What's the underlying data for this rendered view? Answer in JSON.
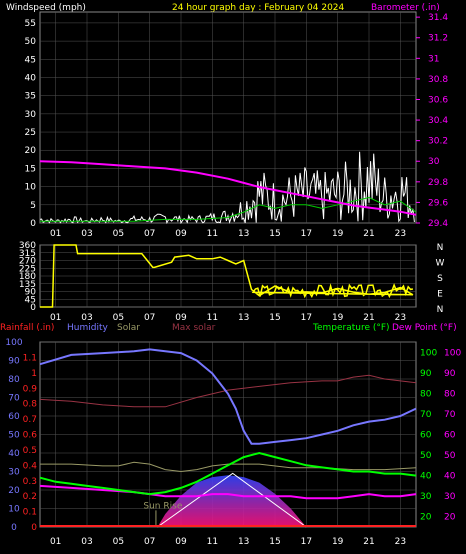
{
  "colors": {
    "background": "#000000",
    "grid": "#555555",
    "windspeed": "#ffffff",
    "wind_avg": "#00cc00",
    "barometer": "#ff00ff",
    "wind_dir": "#ffff00",
    "humidity": "#7777ff",
    "temperature": "#00ff00",
    "dewpoint": "#ff00ff",
    "max_solar": "#993344",
    "solar": "#999966",
    "rainfall": "#ff2222",
    "header_wind": "#ffffff",
    "header_title": "#ffff00",
    "header_baro": "#ff00ff"
  },
  "chart_data": [
    {
      "type": "line",
      "title": "24 hour graph day : February 04 2024",
      "ylabel": "Windspeed (mph)",
      "y2label": "Barometer (.in)",
      "ylim": [
        0,
        58
      ],
      "y2lim": [
        29.4,
        31.45
      ],
      "yticks": [
        "0",
        "5",
        "10",
        "15",
        "20",
        "25",
        "30",
        "35",
        "40",
        "45",
        "50",
        "55"
      ],
      "y2ticks": [
        "29.4",
        "29.6",
        "29.8",
        "30",
        "30.2",
        "30.4",
        "30.6",
        "30.8",
        "31",
        "31.2",
        "31.4"
      ],
      "xticks": [
        "01",
        "03",
        "05",
        "07",
        "09",
        "11",
        "13",
        "15",
        "17",
        "19",
        "21",
        "23"
      ],
      "grid": true,
      "series": [
        {
          "name": "Barometer",
          "x": [
            0,
            2,
            4,
            6,
            8,
            10,
            12,
            13,
            14,
            15,
            16,
            17,
            18,
            19,
            20,
            21,
            22,
            23,
            24
          ],
          "values": [
            30.0,
            29.99,
            29.97,
            29.95,
            29.93,
            29.89,
            29.83,
            29.79,
            29.75,
            29.72,
            29.69,
            29.66,
            29.63,
            29.6,
            29.57,
            29.55,
            29.53,
            29.51,
            29.48
          ]
        },
        {
          "name": "Windspeed",
          "x": [
            0,
            1,
            2,
            3,
            4,
            5,
            6,
            7,
            8,
            9,
            10,
            11,
            12,
            13,
            14,
            15,
            16,
            17,
            18,
            19,
            20,
            21,
            22,
            23,
            24
          ],
          "values": [
            2,
            1,
            2,
            1,
            2,
            1,
            2,
            2,
            3,
            2,
            2,
            3,
            4,
            8,
            16,
            12,
            14,
            16,
            14,
            16,
            18,
            24,
            14,
            18,
            8
          ]
        },
        {
          "name": "Wind Avg",
          "x": [
            0,
            2,
            4,
            6,
            8,
            10,
            12,
            13,
            14,
            15,
            16,
            17,
            18,
            19,
            20,
            21,
            22,
            23,
            24
          ],
          "values": [
            0.5,
            0.5,
            0.5,
            0.5,
            1,
            1,
            1.5,
            3,
            5,
            4,
            5,
            5,
            4,
            5,
            6,
            7,
            5,
            6,
            3
          ]
        }
      ]
    },
    {
      "type": "line",
      "ylabels": [
        "360",
        "315",
        "270",
        "225",
        "180",
        "135",
        "90",
        "45",
        "0"
      ],
      "y2labels": [
        "N",
        "W",
        "S",
        "E",
        "N"
      ],
      "ylim": [
        0,
        360
      ],
      "xticks": [
        "01",
        "03",
        "05",
        "07",
        "09",
        "11",
        "13",
        "15",
        "17",
        "19",
        "21",
        "23"
      ],
      "series": [
        {
          "name": "Wind Direction",
          "x": [
            0,
            0.8,
            0.9,
            2.3,
            2.4,
            6.5,
            7.2,
            7.3,
            8.4,
            8.6,
            9.5,
            10,
            11,
            11.5,
            12,
            12.5,
            13,
            13.5,
            14,
            15,
            16,
            17,
            18,
            19,
            20,
            21,
            22,
            23,
            23.8
          ],
          "values": [
            0,
            0,
            360,
            360,
            310,
            310,
            230,
            230,
            260,
            290,
            300,
            280,
            280,
            290,
            270,
            250,
            270,
            110,
            80,
            100,
            90,
            80,
            95,
            85,
            90,
            80,
            85,
            90,
            60
          ]
        }
      ]
    },
    {
      "type": "line",
      "labels_left": [
        "Rainfall (.in)",
        "Humidity",
        "Solar",
        "Max solar"
      ],
      "labels_right": [
        "Temperature (°F)",
        "Dew Point (°F)"
      ],
      "hum_ticks": [
        "100",
        "90",
        "80",
        "70",
        "60",
        "50",
        "40",
        "30",
        "20",
        "10",
        "0"
      ],
      "rain_ticks": [
        "1.1",
        "1",
        "0.9",
        "0.8",
        "0.7",
        "0.6",
        "0.5",
        "0.4",
        "0.3",
        "0.2",
        "0.1",
        "0"
      ],
      "temp_ticks": [
        "100",
        "90",
        "80",
        "70",
        "60",
        "50",
        "40",
        "30",
        "20"
      ],
      "dew_ticks": [
        "100",
        "90",
        "80",
        "70",
        "60",
        "50",
        "40",
        "30",
        "20"
      ],
      "xticks": [
        "01",
        "03",
        "05",
        "07",
        "09",
        "11",
        "13",
        "15",
        "17",
        "19",
        "21",
        "23"
      ],
      "annotation": "Sun Rise",
      "ylim_humidity": [
        0,
        100
      ],
      "ylim_temperature": [
        15,
        105
      ],
      "series": [
        {
          "name": "Humidity",
          "x": [
            0,
            2,
            4,
            6,
            7,
            8,
            9,
            10,
            11,
            12,
            12.5,
            13,
            13.5,
            14,
            15,
            16,
            17,
            18,
            19,
            20,
            21,
            22,
            23,
            24
          ],
          "values": [
            88,
            93,
            94,
            95,
            96,
            95,
            94,
            90,
            83,
            72,
            64,
            52,
            45,
            45,
            46,
            47,
            48,
            50,
            52,
            55,
            57,
            58,
            60,
            64
          ]
        },
        {
          "name": "Temperature",
          "x": [
            0,
            1,
            2,
            3,
            4,
            5,
            6,
            7,
            8,
            9,
            10,
            11,
            12,
            13,
            14,
            15,
            16,
            17,
            18,
            19,
            20,
            21,
            22,
            23,
            24
          ],
          "values": [
            39,
            37,
            36,
            35,
            34,
            33,
            32,
            31,
            32,
            34,
            37,
            41,
            45,
            49,
            51,
            49,
            47,
            45,
            44,
            43,
            42,
            42,
            41,
            41,
            40
          ]
        },
        {
          "name": "Dew Point",
          "x": [
            0,
            2,
            4,
            6,
            7,
            8,
            9,
            10,
            11,
            12,
            13,
            14,
            15,
            16,
            17,
            18,
            19,
            20,
            21,
            22,
            23,
            24
          ],
          "values": [
            35,
            34,
            33,
            32,
            31,
            30,
            30,
            30,
            31,
            31,
            30,
            30,
            30,
            30,
            29,
            29,
            29,
            30,
            31,
            30,
            30,
            31
          ]
        },
        {
          "name": "Max solar",
          "x": [
            0,
            2,
            4,
            6,
            8,
            10,
            12,
            14,
            16,
            18,
            19,
            20,
            21,
            22,
            23,
            24
          ],
          "values": [
            69,
            68,
            66,
            65,
            65,
            70,
            74,
            76,
            78,
            79,
            79,
            81,
            82,
            80,
            79,
            78
          ]
        },
        {
          "name": "Solar",
          "x": [
            0,
            2,
            4,
            5,
            6,
            7,
            8,
            9,
            10,
            11,
            12,
            14,
            16,
            18,
            20,
            22,
            24
          ],
          "values": [
            34,
            34,
            33,
            33,
            35,
            34,
            31,
            30,
            31,
            33,
            34,
            34,
            32,
            32,
            31,
            31,
            32
          ]
        },
        {
          "name": "Solar radiation",
          "x": [
            7.5,
            8,
            9,
            10,
            11,
            12,
            13,
            14,
            15,
            16,
            17
          ],
          "values": [
            0,
            7,
            17,
            24,
            27,
            28,
            27,
            24,
            18,
            10,
            0
          ]
        }
      ]
    }
  ]
}
